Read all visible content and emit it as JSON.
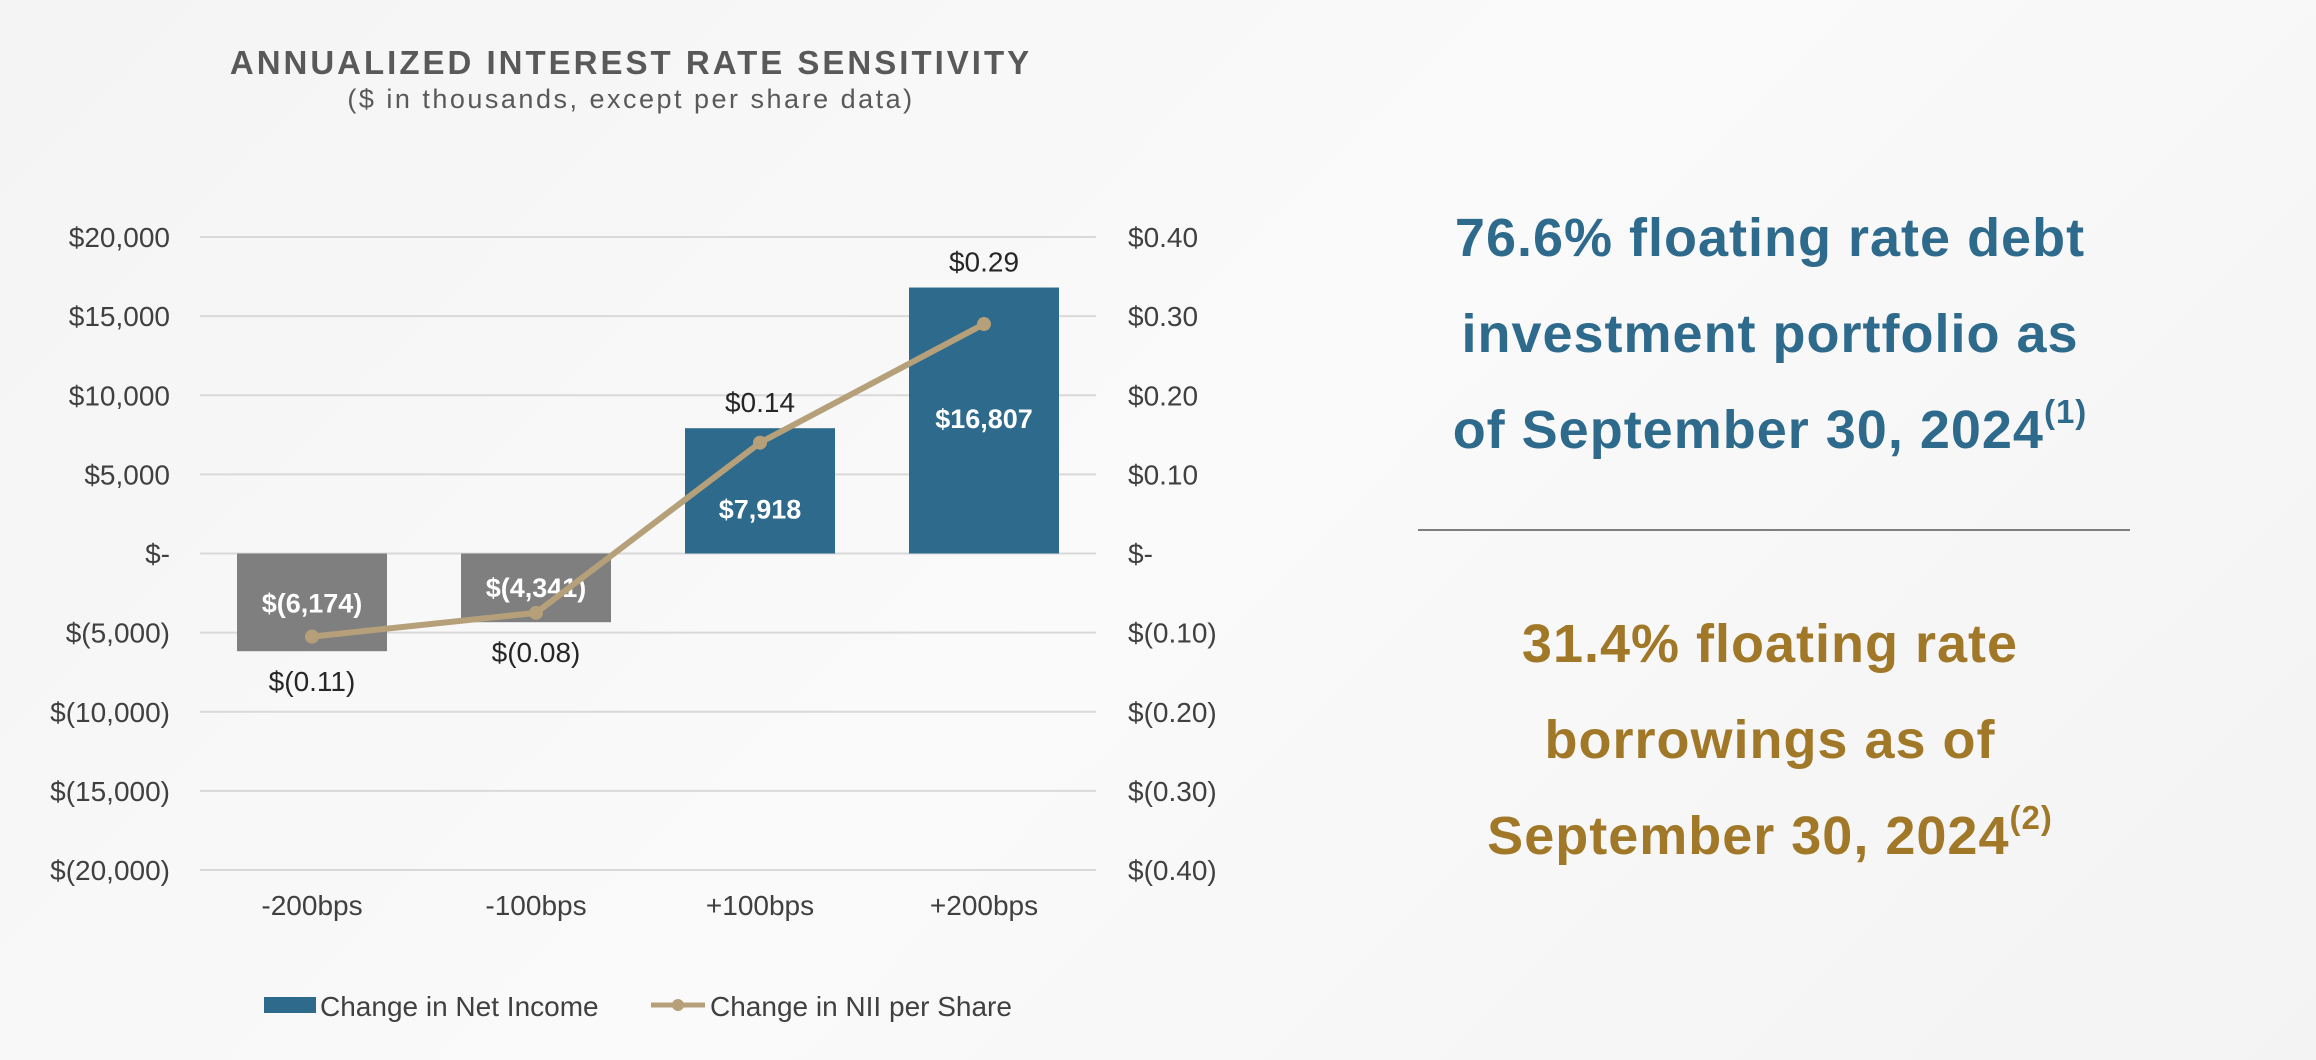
{
  "chart_data": {
    "type": "bar",
    "title": "ANNUALIZED INTEREST RATE SENSITIVITY",
    "subtitle": "($ in thousands, except per share data)",
    "categories": [
      "-200bps",
      "-100bps",
      "+100bps",
      "+200bps"
    ],
    "series": [
      {
        "name": "Change in Net Income",
        "type": "bar",
        "axis": "left",
        "values": [
          -6174,
          -4341,
          7918,
          16807
        ],
        "labels": [
          "$(6,174)",
          "$(4,341)",
          "$7,918",
          "$16,807"
        ],
        "colors": [
          "#7f7f7f",
          "#7f7f7f",
          "#2e6a8c",
          "#2e6a8c"
        ]
      },
      {
        "name": "Change in NII per Share",
        "type": "line",
        "axis": "right",
        "values": [
          -0.105,
          -0.075,
          0.14,
          0.29
        ],
        "labels": [
          "$(0.11)",
          "$(0.08)",
          "$0.14",
          "$0.29"
        ],
        "color": "#b5a07a"
      }
    ],
    "y_left": {
      "ylim": [
        -20000,
        20000
      ],
      "ticks": [
        "$20,000",
        "$15,000",
        "$10,000",
        "$5,000",
        "$-",
        "$(5,000)",
        "$(10,000)",
        "$(15,000)",
        "$(20,000)"
      ]
    },
    "y_right": {
      "ylim": [
        -0.4,
        0.4
      ],
      "ticks": [
        "$0.40",
        "$0.30",
        "$0.20",
        "$0.10",
        "$-",
        "$(0.10)",
        "$(0.20)",
        "$(0.30)",
        "$(0.40)"
      ]
    },
    "grid": true,
    "legend_position": "bottom"
  },
  "callouts": {
    "floating_debt_lines": [
      "76.6% floating rate debt",
      "investment portfolio as",
      "of September 30, 2024"
    ],
    "floating_debt_footnote": "(1)",
    "floating_borrowings_lines": [
      "31.4% floating rate",
      "borrowings as of",
      "September 30, 2024"
    ],
    "floating_borrowings_footnote": "(2)"
  }
}
